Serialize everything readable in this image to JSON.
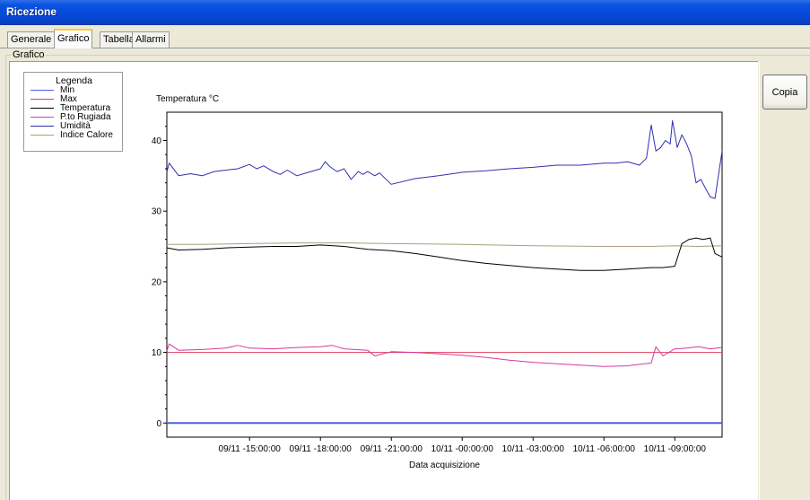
{
  "window": {
    "title": "Ricezione"
  },
  "tabs": [
    {
      "label": "Generale",
      "active": false
    },
    {
      "label": "Grafico",
      "active": true
    },
    {
      "label": "Tabella",
      "active": false
    },
    {
      "label": "Allarmi",
      "active": false
    }
  ],
  "group": {
    "label": "Grafico"
  },
  "toolbar": {
    "copy_label": "Copia"
  },
  "legend": {
    "title": "Legenda",
    "items": [
      {
        "label": "Min",
        "color": "#4d5eea"
      },
      {
        "label": "Max",
        "color": "#e0405a"
      },
      {
        "label": "Temperatura",
        "color": "#000000"
      },
      {
        "label": "P.to Rugiada",
        "color": "#e040a8"
      },
      {
        "label": "Umidità",
        "color": "#3030b0"
      },
      {
        "label": "Indice Calore",
        "color": "#a8a07a"
      }
    ]
  },
  "colors": {
    "min": "#4d5eea",
    "max": "#e0405a",
    "temperatura": "#000000",
    "rugiada": "#d838a0",
    "umidita": "#3030b0",
    "indice": "#a8a07a"
  },
  "chart_data": {
    "type": "line",
    "ylabel": "Temperatura °C",
    "xlabel": "Data acquisizione",
    "yticks": [
      0,
      10,
      20,
      30,
      40
    ],
    "ylim": [
      -2,
      44
    ],
    "xlim": [
      11.5,
      35.0
    ],
    "x_unit": "hours from 09/11 00:00",
    "xtick_labels": [
      {
        "x": 15,
        "label": "09/11 -15:00:00"
      },
      {
        "x": 18,
        "label": "09/11 -18:00:00"
      },
      {
        "x": 21,
        "label": "09/11 -21:00:00"
      },
      {
        "x": 24,
        "label": "10/11 -00:00:00"
      },
      {
        "x": 27,
        "label": "10/11 -03:00:00"
      },
      {
        "x": 30,
        "label": "10/11 -06:00:00"
      },
      {
        "x": 33,
        "label": "10/11 -09:00:00"
      }
    ],
    "series": [
      {
        "name": "Min",
        "key": "min",
        "x": [
          11.5,
          35.0
        ],
        "y": [
          0,
          0
        ]
      },
      {
        "name": "Max",
        "key": "max",
        "x": [
          11.5,
          35.0
        ],
        "y": [
          10,
          10
        ]
      },
      {
        "name": "Umidità",
        "key": "umidita",
        "x": [
          11.5,
          11.6,
          12.0,
          12.5,
          13.0,
          13.5,
          14.0,
          14.5,
          15.0,
          15.3,
          15.6,
          16.0,
          16.3,
          16.6,
          17.0,
          17.5,
          18.0,
          18.2,
          18.4,
          18.7,
          19.0,
          19.3,
          19.6,
          19.8,
          20.0,
          20.3,
          20.5,
          21.0,
          22.0,
          23.0,
          24.0,
          25.0,
          26.0,
          27.0,
          28.0,
          29.0,
          30.0,
          30.5,
          31.0,
          31.5,
          31.8,
          32.0,
          32.2,
          32.4,
          32.6,
          32.8,
          32.9,
          33.1,
          33.3,
          33.5,
          33.7,
          33.9,
          34.1,
          34.3,
          34.5,
          34.7,
          35.0
        ],
        "y": [
          35.5,
          36.8,
          35.0,
          35.3,
          35.0,
          35.6,
          35.8,
          36.0,
          36.6,
          36.0,
          36.4,
          35.6,
          35.2,
          35.8,
          35.0,
          35.5,
          36.0,
          37.0,
          36.3,
          35.6,
          36.0,
          34.5,
          35.6,
          35.2,
          35.6,
          35.0,
          35.4,
          33.8,
          34.6,
          35.0,
          35.5,
          35.7,
          36.0,
          36.2,
          36.5,
          36.5,
          36.8,
          36.8,
          37.0,
          36.5,
          37.5,
          42.2,
          38.5,
          39.0,
          40.0,
          39.5,
          42.8,
          39.0,
          40.8,
          39.5,
          37.8,
          34.0,
          34.5,
          33.2,
          32.0,
          31.8,
          38.5
        ]
      },
      {
        "name": "Indice Calore",
        "key": "indice",
        "x": [
          11.5,
          13.0,
          15.0,
          17.0,
          19.0,
          21.0,
          24.0,
          27.0,
          30.0,
          32.0,
          33.0,
          34.0,
          35.0
        ],
        "y": [
          25.3,
          25.3,
          25.4,
          25.5,
          25.5,
          25.4,
          25.3,
          25.1,
          25.0,
          25.0,
          25.1,
          25.0,
          25.1
        ]
      },
      {
        "name": "Temperatura",
        "key": "temperatura",
        "x": [
          11.5,
          12.0,
          13.0,
          14.0,
          15.0,
          16.0,
          17.0,
          18.0,
          19.0,
          20.0,
          21.0,
          22.0,
          23.0,
          24.0,
          25.0,
          26.0,
          27.0,
          28.0,
          29.0,
          30.0,
          31.0,
          32.0,
          32.5,
          33.0,
          33.3,
          33.6,
          33.9,
          34.2,
          34.5,
          34.7,
          35.0
        ],
        "y": [
          24.8,
          24.5,
          24.6,
          24.8,
          24.9,
          25.0,
          25.0,
          25.2,
          25.0,
          24.6,
          24.4,
          24.0,
          23.5,
          23.0,
          22.6,
          22.3,
          22.0,
          21.8,
          21.6,
          21.6,
          21.8,
          22.0,
          22.0,
          22.2,
          25.4,
          26.0,
          26.2,
          26.0,
          26.2,
          24.0,
          23.5
        ]
      },
      {
        "name": "P.to Rugiada",
        "key": "rugiada",
        "x": [
          11.5,
          11.6,
          12.0,
          13.0,
          14.0,
          14.5,
          15.0,
          16.0,
          17.0,
          18.0,
          18.5,
          19.0,
          20.0,
          20.3,
          21.0,
          22.0,
          23.0,
          24.0,
          25.0,
          26.0,
          27.0,
          28.0,
          29.0,
          30.0,
          31.0,
          31.5,
          32.0,
          32.2,
          32.5,
          33.0,
          33.5,
          34.0,
          34.5,
          35.0
        ],
        "y": [
          10.2,
          11.2,
          10.3,
          10.4,
          10.6,
          11.0,
          10.6,
          10.5,
          10.7,
          10.8,
          11.0,
          10.5,
          10.3,
          9.5,
          10.1,
          10.0,
          9.8,
          9.6,
          9.3,
          8.9,
          8.6,
          8.4,
          8.2,
          8.0,
          8.1,
          8.3,
          8.5,
          10.8,
          9.5,
          10.5,
          10.6,
          10.8,
          10.5,
          10.7
        ]
      }
    ]
  }
}
